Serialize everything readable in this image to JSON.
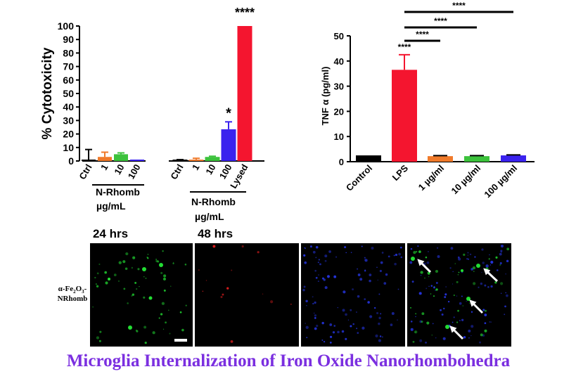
{
  "colors": {
    "bar_ctrl": "#000000",
    "bar_1": "#f07a2a",
    "bar_10": "#3cc23c",
    "bar_100": "#3a22ee",
    "bar_lysed": "#f4152f",
    "micro_green": "#22dd33",
    "micro_red": "#ff2222",
    "micro_blue": "#2a3cff",
    "title": "#7b2fe0"
  },
  "chart_data": [
    {
      "type": "bar",
      "ylabel": "% Cytotoxicity",
      "ylim": [
        0,
        100
      ],
      "yticks": [
        0,
        10,
        20,
        30,
        40,
        50,
        60,
        70,
        80,
        90,
        100
      ],
      "groups": [
        {
          "time_label": "24 hrs",
          "group_label_line1": "N-Rhomb",
          "group_label_line2": "µg/mL",
          "categories": [
            "Ctrl",
            "1",
            "10",
            "100"
          ],
          "values": [
            0,
            3,
            5,
            0
          ],
          "errors": [
            8.5,
            3.5,
            1,
            0
          ],
          "significance": [
            "",
            "",
            "",
            ""
          ]
        },
        {
          "time_label": "48 hrs",
          "group_label_line1": "N-Rhomb",
          "group_label_line2": "µg/mL",
          "categories": [
            "Ctrl",
            "1",
            "10",
            "100",
            "Lysed"
          ],
          "values": [
            0,
            1,
            3,
            23.5,
            100
          ],
          "errors": [
            1,
            1,
            0.5,
            5.5,
            0
          ],
          "significance": [
            "",
            "",
            "",
            "*",
            "****"
          ]
        }
      ]
    },
    {
      "type": "bar",
      "ylabel": "TNF α (pg/ml)",
      "ylim": [
        0,
        50
      ],
      "yticks": [
        0,
        10,
        20,
        30,
        40,
        50
      ],
      "categories": [
        "Control",
        "LPS",
        "1 µg/ml",
        "10 µg/ml",
        "100 µg/ml"
      ],
      "values": [
        2.5,
        36.5,
        2.2,
        2.2,
        2.5
      ],
      "errors": [
        0,
        6,
        0.2,
        0.2,
        0.2
      ],
      "significance": [
        "",
        "****",
        "",
        "",
        ""
      ],
      "comparisons": [
        {
          "from": "LPS",
          "to": "1 µg/ml",
          "label": "****"
        },
        {
          "from": "LPS",
          "to": "10 µg/ml",
          "label": "****"
        },
        {
          "from": "LPS",
          "to": "100 µg/ml",
          "label": "****"
        }
      ]
    }
  ],
  "micrographs": {
    "row_label_line1": "α-Fe",
    "row_label_sub1": "2",
    "row_label_mid": "O",
    "row_label_sub2": "3",
    "row_label_dash": "-",
    "row_label_line2": "NRhomb"
  },
  "caption": "Microglia Internalization of Iron Oxide Nanorhombohedra"
}
